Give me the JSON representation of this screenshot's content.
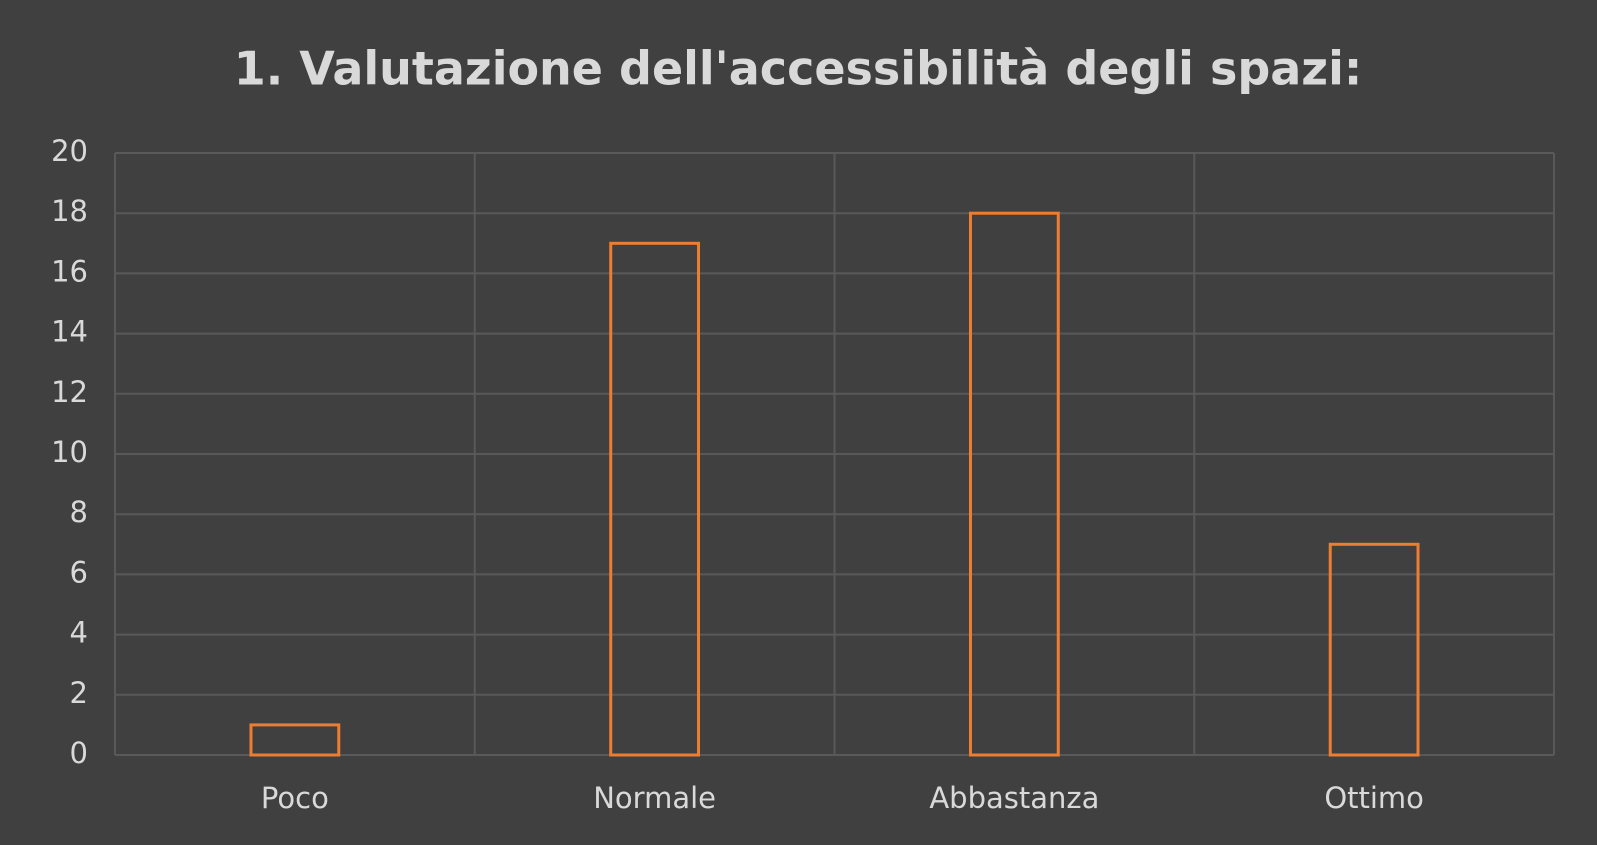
{
  "chart_data": {
    "type": "bar",
    "title": "1. Valutazione dell'accessibilità degli spazi:",
    "categories": [
      "Poco",
      "Normale",
      "Abbastanza",
      "Ottimo"
    ],
    "values": [
      1,
      17,
      18,
      7
    ],
    "color": "#ed7d31",
    "ylim": [
      0,
      20
    ],
    "yticks": [
      0,
      2,
      4,
      6,
      8,
      10,
      12,
      14,
      16,
      18,
      20
    ],
    "grid": true
  }
}
